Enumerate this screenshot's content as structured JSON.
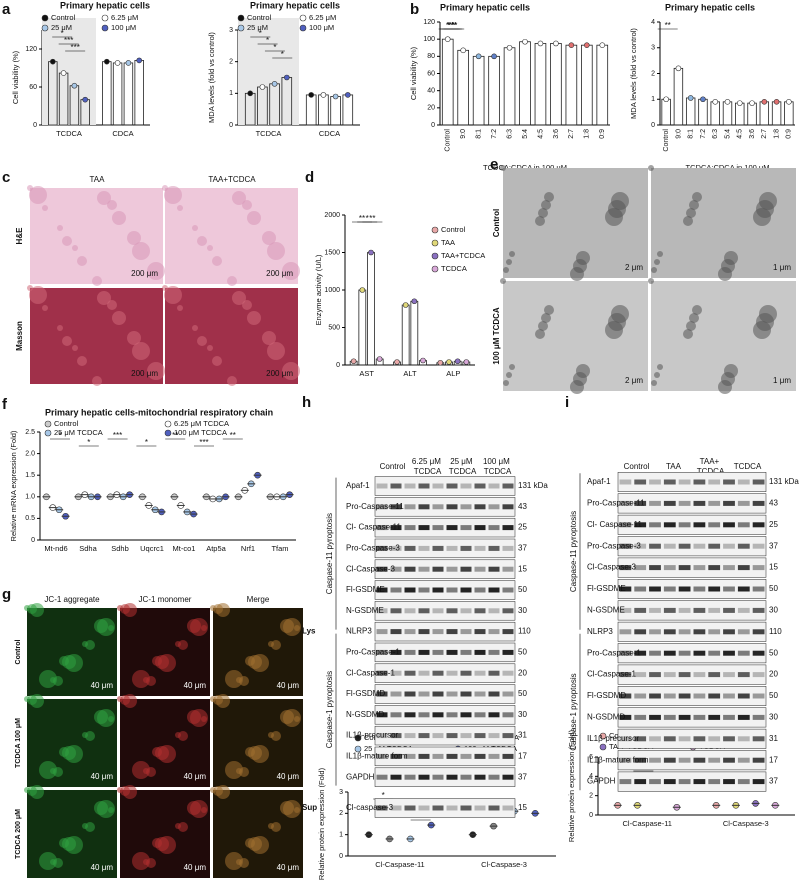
{
  "panel_letters": [
    "a",
    "b",
    "c",
    "d",
    "e",
    "f",
    "g",
    "h",
    "i"
  ],
  "chart_data": [
    {
      "type": "bar",
      "title": "Primary hepatic cells",
      "ylabel": "Cell viability (%)",
      "categories": [
        "TCDCA",
        "CDCA"
      ],
      "ylim": [
        0,
        150
      ],
      "yticks": [
        0,
        60,
        120
      ],
      "series": [
        {
          "name": "Control",
          "color": "#111111",
          "values": [
            100,
            100
          ]
        },
        {
          "name": "6.25 μM",
          "color": "#ffffff",
          "values": [
            82,
            98
          ]
        },
        {
          "name": "25 μM",
          "color": "#a8c8e8",
          "values": [
            62,
            98
          ]
        },
        {
          "name": "100 μM",
          "color": "#5060c0",
          "values": [
            40,
            102
          ]
        }
      ],
      "annotations": [
        "*",
        "***",
        "***"
      ]
    },
    {
      "type": "bar",
      "title": "Primary hepatic cells",
      "ylabel": "MDA levels (fold vs control)",
      "categories": [
        "TCDCA",
        "CDCA"
      ],
      "ylim": [
        0,
        3
      ],
      "yticks": [
        0,
        1,
        2,
        3
      ],
      "series": [
        {
          "name": "Control",
          "color": "#111111",
          "values": [
            1,
            0.95
          ]
        },
        {
          "name": "6.25 μM",
          "color": "#ffffff",
          "values": [
            1.2,
            0.95
          ]
        },
        {
          "name": "25 μM",
          "color": "#a8c8e8",
          "values": [
            1.3,
            0.9
          ]
        },
        {
          "name": "100 μM",
          "color": "#5060c0",
          "values": [
            1.5,
            0.95
          ]
        }
      ],
      "annotations": [
        "*",
        "*",
        "*",
        "*"
      ]
    },
    {
      "type": "bar",
      "title": "Primary hepatic cells",
      "ylabel": "Cell viability (%)",
      "xlabel": "TCDCA:CDCA in 100 μM",
      "categories": [
        "Control",
        "9:0",
        "8:1",
        "7:2",
        "6:3",
        "5:4",
        "4:5",
        "3:6",
        "2:7",
        "1:8",
        "0:9"
      ],
      "ylim": [
        0,
        120
      ],
      "yticks": [
        0,
        20,
        40,
        60,
        80,
        100,
        120
      ],
      "values": [
        100,
        87,
        80,
        80,
        90,
        97,
        95,
        95,
        93,
        93,
        93
      ],
      "colors": [
        "#ffffff",
        "#ffffff",
        "#8fb8e0",
        "#6080c8",
        "#ffffff",
        "#ffffff",
        "#ffffff",
        "#ffffff",
        "#e07070",
        "#e07070",
        "#ffffff"
      ],
      "annotations": [
        "*",
        "***",
        "***",
        "**"
      ]
    },
    {
      "type": "bar",
      "title": "Primary hepatic cells",
      "ylabel": "MDA levels (fold vs control)",
      "xlabel": "TCDCA:CDCA in 100 μM",
      "categories": [
        "Control",
        "9:0",
        "8:1",
        "7:2",
        "6:3",
        "5:4",
        "4:5",
        "3:6",
        "2:7",
        "1:8",
        "0:9"
      ],
      "ylim": [
        0,
        4
      ],
      "yticks": [
        0,
        1,
        2,
        3,
        4
      ],
      "values": [
        1,
        2.2,
        1.05,
        1,
        0.9,
        0.9,
        0.85,
        0.85,
        0.9,
        0.9,
        0.9
      ],
      "colors": [
        "#ffffff",
        "#ffffff",
        "#8fb8e0",
        "#6080c8",
        "#ffffff",
        "#ffffff",
        "#ffffff",
        "#ffffff",
        "#e07070",
        "#e07070",
        "#ffffff"
      ],
      "annotations": [
        "**"
      ]
    },
    {
      "type": "bar",
      "ylabel": "Enzyme activity (U/L)",
      "categories": [
        "AST",
        "ALT",
        "ALP"
      ],
      "ylim": [
        0,
        2000
      ],
      "yticks": [
        0,
        500,
        1000,
        1500,
        2000
      ],
      "series": [
        {
          "name": "Control",
          "color": "#e8a8a8",
          "values": [
            50,
            40,
            30
          ]
        },
        {
          "name": "TAA",
          "color": "#e0d878",
          "values": [
            1000,
            800,
            40
          ]
        },
        {
          "name": "TAA+TCDCA",
          "color": "#8a70c0",
          "values": [
            1500,
            850,
            50
          ]
        },
        {
          "name": "TCDCA",
          "color": "#d8a8d8",
          "values": [
            80,
            60,
            40
          ]
        }
      ],
      "annotations": [
        "**",
        "*",
        "**"
      ]
    },
    {
      "type": "dot",
      "title": "Primary hepatic cells-mitochondrial respiratory chain",
      "ylabel": "Relative mRNA expression (Fold)",
      "categories": [
        "Mt-nd6",
        "Sdha",
        "Sdhb",
        "Uqcrc1",
        "Mt-co1",
        "Atp5a",
        "Nrf1",
        "Tfam"
      ],
      "ylim": [
        0,
        2.5
      ],
      "yticks": [
        0,
        0.5,
        {
          "value": 1,
          "label": "1.0"
        },
        1.5,
        {
          "value": 2,
          "label": "2.0"
        },
        2.5
      ],
      "series": [
        {
          "name": "Control",
          "color": "#cccccc",
          "values": [
            1,
            1,
            1,
            1,
            1,
            1,
            1,
            1
          ]
        },
        {
          "name": "6.25 μM TCDCA",
          "color": "#ffffff",
          "values": [
            0.75,
            1.05,
            1.05,
            0.8,
            0.8,
            0.95,
            1.15,
            1.0
          ]
        },
        {
          "name": "25 μM TCDCA",
          "color": "#a8c8e8",
          "values": [
            0.7,
            1.0,
            1.0,
            0.7,
            0.65,
            0.95,
            1.3,
            1.0
          ]
        },
        {
          "name": "100 μM TCDCA",
          "color": "#5060c0",
          "values": [
            0.55,
            1.0,
            1.05,
            0.65,
            0.6,
            1.0,
            1.5,
            1.05
          ]
        }
      ],
      "annotations": [
        "*",
        "*",
        "***",
        "*",
        "**",
        "***",
        "**"
      ]
    },
    {
      "type": "dot",
      "ylabel": "Relative protein expression (Fold)",
      "categories": [
        "Cl-Caspase-11",
        "Cl-Caspase-3"
      ],
      "ylim": [
        0,
        3
      ],
      "yticks": [
        0,
        1,
        2,
        3
      ],
      "series": [
        {
          "name": "Control",
          "color": "#222222",
          "values": [
            1,
            1
          ]
        },
        {
          "name": "6.25 μM TCDCA",
          "color": "#888888",
          "values": [
            0.8,
            1.4
          ]
        },
        {
          "name": "25 μM TCDCA",
          "color": "#a8c8e8",
          "values": [
            0.8,
            2.1
          ]
        },
        {
          "name": "100 μM TCDCA",
          "color": "#5060c0",
          "values": [
            1.45,
            2.0
          ]
        }
      ],
      "annotations": [
        "*",
        "*",
        "**",
        "*"
      ]
    },
    {
      "type": "dot",
      "ylabel": "Relative protein expression (Fold)",
      "categories": [
        "Cl-Caspase-11",
        "Cl-Caspase-3"
      ],
      "ylim": [
        0,
        6
      ],
      "yticks": [
        0,
        2,
        4,
        6
      ],
      "series": [
        {
          "name": "Control",
          "color": "#e8a8a8",
          "values": [
            1,
            1
          ]
        },
        {
          "name": "TAA",
          "color": "#e0d878",
          "values": [
            1,
            1
          ]
        },
        {
          "name": "TAA+TCDCA",
          "color": "#8a70c0",
          "values": [
            5.5,
            1.2
          ]
        },
        {
          "name": "TCDCA",
          "color": "#d8a8d8",
          "values": [
            0.8,
            1
          ]
        }
      ],
      "annotations": [
        "***",
        "**"
      ]
    }
  ],
  "image_panels": {
    "c": {
      "columns": [
        "TAA",
        "TAA+TCDCA"
      ],
      "rows": [
        "H&E",
        "Masson"
      ],
      "scale_bar": "200 μm"
    },
    "e": {
      "rows": [
        "Control",
        "100 μM TCDCA"
      ],
      "scale_bars": [
        "2 μm",
        "1 μm"
      ]
    },
    "g": {
      "columns": [
        "JC-1 aggregate",
        "JC-1 monomer",
        "Merge"
      ],
      "rows": [
        "Control",
        "TCDCA 100 μM",
        "TCDCA 200 μM"
      ],
      "scale_bar": "40 μm"
    }
  },
  "blots": {
    "h": {
      "columns": [
        "Control",
        "6.25 μM TCDCA",
        "25 μM TCDCA",
        "100 μM TCDCA"
      ],
      "groups": [
        "Caspase-11 pyroptosis",
        "Caspase-1 pyroptosis"
      ],
      "fractions": [
        "Lys",
        "Sup"
      ],
      "rows": [
        {
          "label": "Apaf-1",
          "kda": "131 kDa"
        },
        {
          "label": "Pro-Caspase-11",
          "kda": "43"
        },
        {
          "label": "Cl- Caspase-11",
          "kda": "25"
        },
        {
          "label": "Pro-Caspase-3",
          "kda": "37"
        },
        {
          "label": "Cl-Caspase-3",
          "kda": "15"
        },
        {
          "label": "Fl-GSDME",
          "kda": "50"
        },
        {
          "label": "N-GSDME",
          "kda": "30"
        },
        {
          "label": "NLRP3",
          "kda": "110"
        },
        {
          "label": "Pro-Caspase-1",
          "kda": "50"
        },
        {
          "label": "Cl-Caspase-1",
          "kda": "20"
        },
        {
          "label": "Fl-GSDMD",
          "kda": "50"
        },
        {
          "label": "N-GSDMD",
          "kda": "30"
        },
        {
          "label": "IL1β-precursor",
          "kda": "31"
        },
        {
          "label": "IL1β-mature form",
          "kda": "17"
        },
        {
          "label": "GAPDH",
          "kda": "37"
        },
        {
          "label": "Cl-caspase-3",
          "kda": "15"
        }
      ]
    },
    "i": {
      "columns": [
        "Control",
        "TAA",
        "TAA+ TCDCA",
        "TCDCA"
      ],
      "groups": [
        "Caspase-11 pyroptosis",
        "Caspase-1 pyroptosis"
      ],
      "rows": [
        {
          "label": "Apaf-1",
          "kda": "131 kDa"
        },
        {
          "label": "Pro-Caspase-11",
          "kda": "43"
        },
        {
          "label": "Cl- Caspase-11",
          "kda": "25"
        },
        {
          "label": "Pro-Caspase-3",
          "kda": "37"
        },
        {
          "label": "Cl-Caspase-3",
          "kda": "15"
        },
        {
          "label": "Fl-GSDME",
          "kda": "50"
        },
        {
          "label": "N-GSDME",
          "kda": "30"
        },
        {
          "label": "NLRP3",
          "kda": "110"
        },
        {
          "label": "Pro-Caspase-1",
          "kda": "50"
        },
        {
          "label": "Cl-Caspase-1",
          "kda": "20"
        },
        {
          "label": "Fl-GSDMD",
          "kda": "50"
        },
        {
          "label": "N-GSDMD",
          "kda": "30"
        },
        {
          "label": "IL1β-precursor",
          "kda": "31"
        },
        {
          "label": "IL1β-mature form",
          "kda": "17"
        },
        {
          "label": "GAPDH",
          "kda": "37"
        }
      ]
    }
  }
}
